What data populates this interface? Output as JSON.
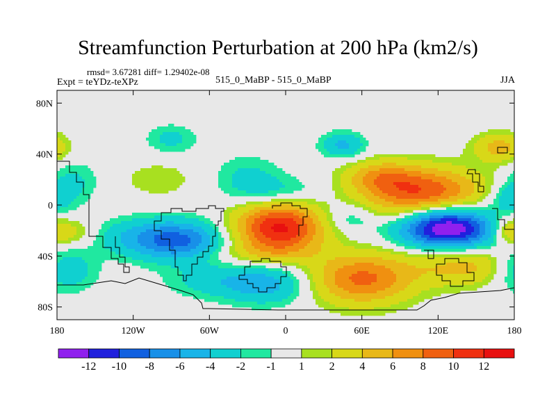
{
  "header": {
    "title": "Streamfunction Perturbation at 200 hPa (km2/s)",
    "stats": "rmsd= 3.67281 diff= 1.29402e-08",
    "expt": "Expt = teYDz-teXPz",
    "center_label": "515_0_MaBP - 515_0_MaBP",
    "season": "JJA"
  },
  "chart_data": {
    "type": "heatmap",
    "title": "Streamfunction Perturbation at 200 hPa (km2/s)",
    "xlabel": "",
    "ylabel": "",
    "xlim": [
      -180,
      180
    ],
    "ylim": [
      -90,
      90
    ],
    "x_ticks": [
      {
        "value": -180,
        "label": "180"
      },
      {
        "value": -120,
        "label": "120W"
      },
      {
        "value": -60,
        "label": "60W"
      },
      {
        "value": 0,
        "label": "0"
      },
      {
        "value": 60,
        "label": "60E"
      },
      {
        "value": 120,
        "label": "120E"
      },
      {
        "value": 180,
        "label": "180"
      }
    ],
    "y_ticks": [
      {
        "value": 80,
        "label": "80N"
      },
      {
        "value": 40,
        "label": "40N"
      },
      {
        "value": 0,
        "label": "0"
      },
      {
        "value": -40,
        "label": "40S"
      },
      {
        "value": -80,
        "label": "80S"
      }
    ],
    "colorbar": {
      "labels": [
        "-12",
        "-10",
        "-8",
        "-6",
        "-4",
        "-2",
        "-1",
        "1",
        "2",
        "4",
        "6",
        "8",
        "10",
        "12"
      ],
      "colors": [
        "#9020ee",
        "#2020dd",
        "#1060e0",
        "#1890e8",
        "#18b4e8",
        "#10d0d0",
        "#20e8a0",
        "#e8e8e8",
        "#a8e020",
        "#d8d818",
        "#e8b818",
        "#f09010",
        "#f06010",
        "#f03010",
        "#e81010"
      ],
      "cmin": -14,
      "cmax": 14,
      "background": "#e8e8e8"
    },
    "features": [
      {
        "lon": -5,
        "lat": -18,
        "amp": 12.5,
        "sx": 24,
        "sy": 14
      },
      {
        "lon": 110,
        "lat": 8,
        "amp": 10.5,
        "sx": 32,
        "sy": 14
      },
      {
        "lon": 75,
        "lat": 22,
        "amp": 5,
        "sx": 20,
        "sy": 9
      },
      {
        "lon": 125,
        "lat": -15,
        "amp": -12.5,
        "sx": 24,
        "sy": 12
      },
      {
        "lon": 140,
        "lat": -22,
        "amp": -4,
        "sx": 35,
        "sy": 9
      },
      {
        "lon": -85,
        "lat": -28,
        "amp": -8.5,
        "sx": 25,
        "sy": 11
      },
      {
        "lon": -125,
        "lat": -25,
        "amp": -2.5,
        "sx": 25,
        "sy": 10
      },
      {
        "lon": -10,
        "lat": 10,
        "amp": -3,
        "sx": 25,
        "sy": 9
      },
      {
        "lon": 50,
        "lat": -10,
        "amp": -2.5,
        "sx": 15,
        "sy": 8
      },
      {
        "lon": 60,
        "lat": -58,
        "amp": 8.5,
        "sx": 28,
        "sy": 14
      },
      {
        "lon": -15,
        "lat": -62,
        "amp": -5,
        "sx": 24,
        "sy": 11
      },
      {
        "lon": -60,
        "lat": -60,
        "amp": -2.5,
        "sx": 25,
        "sy": 9
      },
      {
        "lon": 145,
        "lat": -48,
        "amp": 5,
        "sx": 32,
        "sy": 11
      },
      {
        "lon": 168,
        "lat": 45,
        "amp": 5,
        "sx": 14,
        "sy": 8
      },
      {
        "lon": 175,
        "lat": -20,
        "amp": 4,
        "sx": 10,
        "sy": 8
      },
      {
        "lon": 175,
        "lat": 5,
        "amp": -3.5,
        "sx": 12,
        "sy": 9
      },
      {
        "lon": -175,
        "lat": -50,
        "amp": -5,
        "sx": 18,
        "sy": 12
      },
      {
        "lon": -170,
        "lat": -22,
        "amp": 4,
        "sx": 16,
        "sy": 8
      },
      {
        "lon": -168,
        "lat": 18,
        "amp": -2.5,
        "sx": 14,
        "sy": 12
      },
      {
        "lon": -90,
        "lat": 52,
        "amp": -2.5,
        "sx": 14,
        "sy": 8
      },
      {
        "lon": 45,
        "lat": 47,
        "amp": -4.5,
        "sx": 12,
        "sy": 7
      },
      {
        "lon": -30,
        "lat": 25,
        "amp": -2,
        "sx": 18,
        "sy": 11
      },
      {
        "lon": -100,
        "lat": 20,
        "amp": 2,
        "sx": 18,
        "sy": 9
      },
      {
        "lon": -20,
        "lat": -38,
        "amp": 2,
        "sx": 30,
        "sy": 6
      }
    ]
  }
}
